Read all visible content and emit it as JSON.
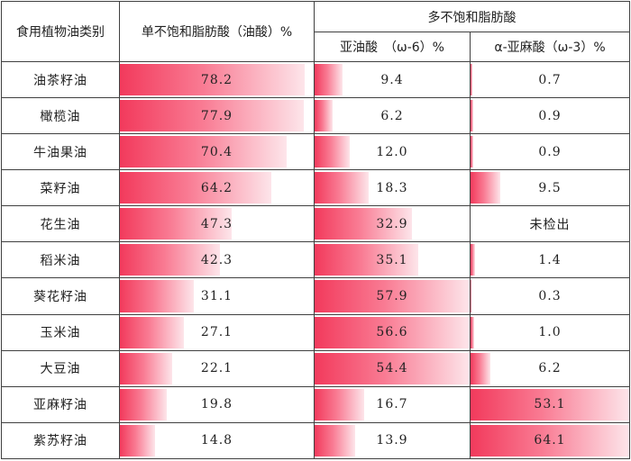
{
  "table": {
    "headers": {
      "category": "食用植物油类别",
      "mufa": "单不饱和脂肪酸（油酸）%",
      "pufa": "多不饱和脂肪酸",
      "linoleic": "亚油酸　（ω-6）%",
      "linolenic": "α-亚麻酸（ω-3）%"
    },
    "rows": [
      {
        "name": "油茶籽油",
        "mufa": "78.2",
        "linoleic": "9.4",
        "linolenic": "0.7"
      },
      {
        "name": "橄榄油",
        "mufa": "77.9",
        "linoleic": "6.2",
        "linolenic": "0.9"
      },
      {
        "name": "牛油果油",
        "mufa": "70.4",
        "linoleic": "12.0",
        "linolenic": "0.9"
      },
      {
        "name": "菜籽油",
        "mufa": "64.2",
        "linoleic": "18.3",
        "linolenic": "9.5"
      },
      {
        "name": "花生油",
        "mufa": "47.3",
        "linoleic": "32.9",
        "linolenic": "未检出"
      },
      {
        "name": "稻米油",
        "mufa": "42.3",
        "linoleic": "35.1",
        "linolenic": "1.4"
      },
      {
        "name": "葵花籽油",
        "mufa": "31.1",
        "linoleic": "57.9",
        "linolenic": "0.3"
      },
      {
        "name": "玉米油",
        "mufa": "27.1",
        "linoleic": "56.6",
        "linolenic": "1.0"
      },
      {
        "name": "大豆油",
        "mufa": "22.1",
        "linoleic": "54.4",
        "linolenic": "6.2"
      },
      {
        "name": "亚麻籽油",
        "mufa": "19.8",
        "linoleic": "16.7",
        "linolenic": "53.1"
      },
      {
        "name": "紫苏籽油",
        "mufa": "14.8",
        "linoleic": "13.9",
        "linolenic": "64.1"
      }
    ],
    "bar_color_start": "#f23a5c",
    "bar_color_end": "#fde5ea"
  }
}
